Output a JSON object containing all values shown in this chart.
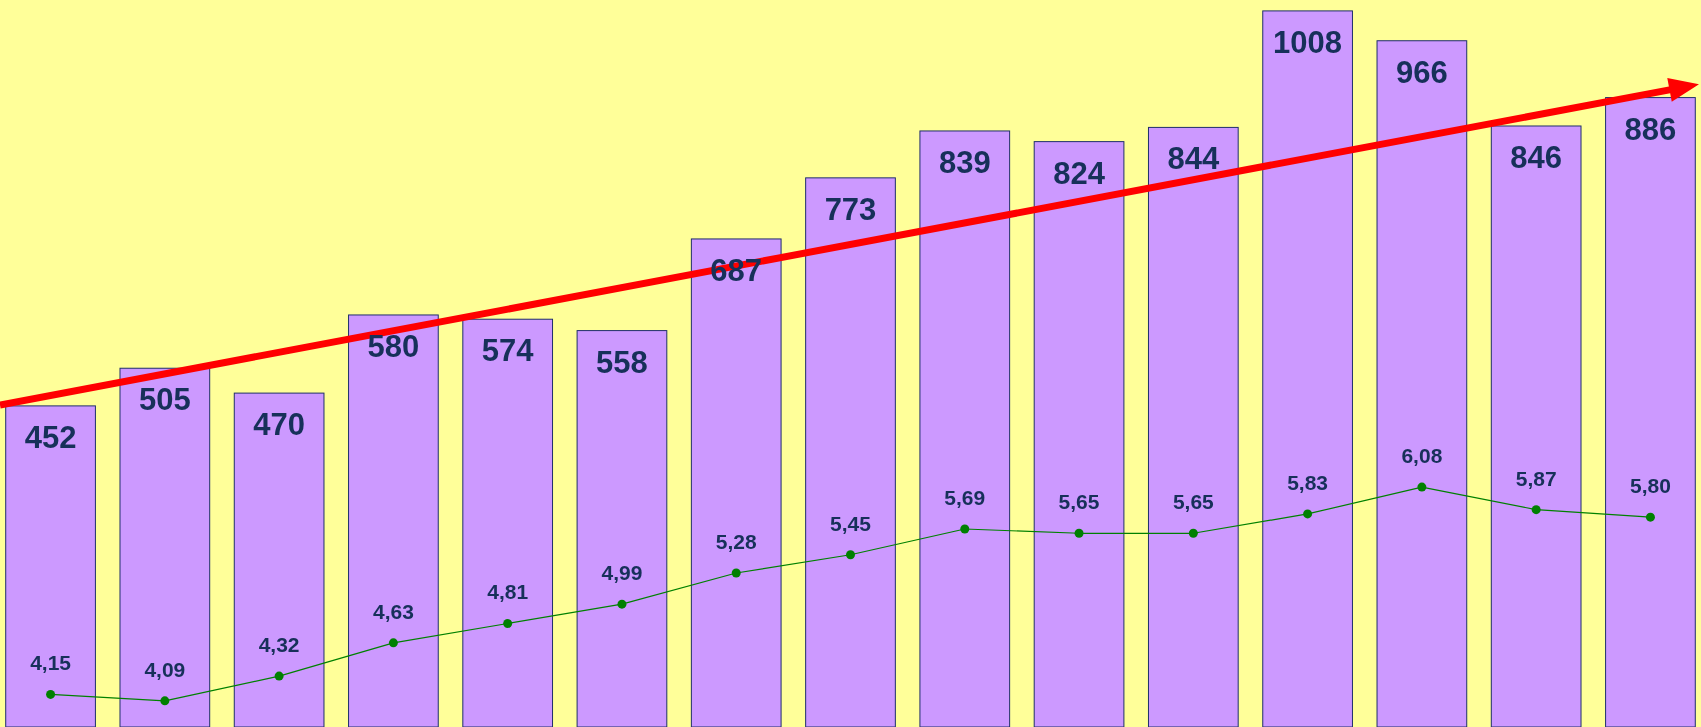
{
  "chart_data": [
    {
      "type": "bar",
      "categories": [
        null,
        null,
        null,
        null,
        null,
        null,
        null,
        null,
        null,
        null,
        null,
        null,
        null,
        null,
        null
      ],
      "data_labels": true,
      "color": "#cc99ff",
      "values": [
        452,
        505,
        470,
        580,
        574,
        558,
        687,
        773,
        839,
        824,
        844,
        1008,
        966,
        846,
        886
      ]
    },
    {
      "type": "line",
      "categories": [
        null,
        null,
        null,
        null,
        null,
        null,
        null,
        null,
        null,
        null,
        null,
        null,
        null,
        null,
        null
      ],
      "marker": "circle",
      "color": "#008000",
      "values": [
        4.15,
        4.09,
        4.32,
        4.63,
        4.81,
        4.99,
        5.28,
        5.45,
        5.69,
        5.65,
        5.65,
        5.83,
        6.08,
        5.87,
        5.8
      ],
      "value_labels": [
        "4,15",
        "4,09",
        "4,32",
        "4,63",
        "4,81",
        "4,99",
        "5,28",
        "5,45",
        "5,69",
        "5,65",
        "5,65",
        "5,83",
        "6,08",
        "5,87",
        "5,80"
      ]
    }
  ]
}
